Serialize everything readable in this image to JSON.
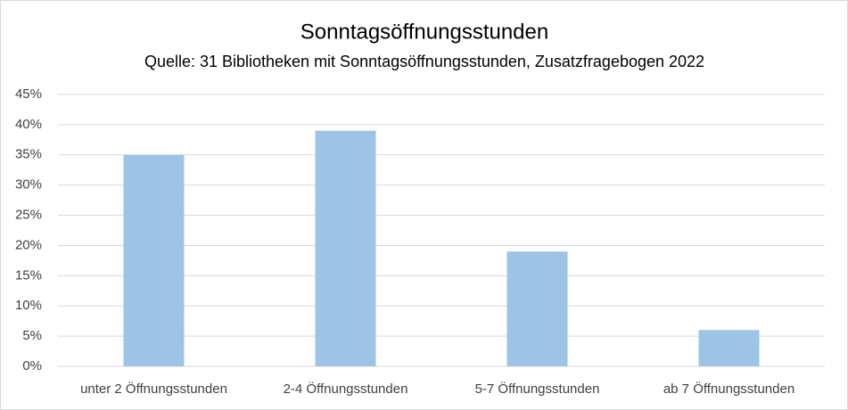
{
  "chart_data": {
    "type": "bar",
    "title": "Sonntagsöffnungsstunden",
    "subtitle": "Quelle: 31 Bibliotheken mit Sonntagsöffnungsstunden, Zusatzfragebogen 2022",
    "categories": [
      "unter 2 Öffnungsstunden",
      "2-4 Öffnungsstunden",
      "5-7 Öffnungsstunden",
      "ab 7 Öffnungsstunden"
    ],
    "values": [
      35,
      39,
      19,
      6
    ],
    "color": "#9dc3e6",
    "ylim": [
      0,
      45
    ],
    "yticks": [
      {
        "value": 0,
        "label": "0%"
      },
      {
        "value": 5,
        "label": "5%"
      },
      {
        "value": 10,
        "label": "10%"
      },
      {
        "value": 15,
        "label": "15%"
      },
      {
        "value": 20,
        "label": "20%"
      },
      {
        "value": 25,
        "label": "25%"
      },
      {
        "value": 30,
        "label": "30%"
      },
      {
        "value": 35,
        "label": "35%"
      },
      {
        "value": 40,
        "label": "40%"
      },
      {
        "value": 45,
        "label": "45%"
      }
    ],
    "grid": true
  }
}
